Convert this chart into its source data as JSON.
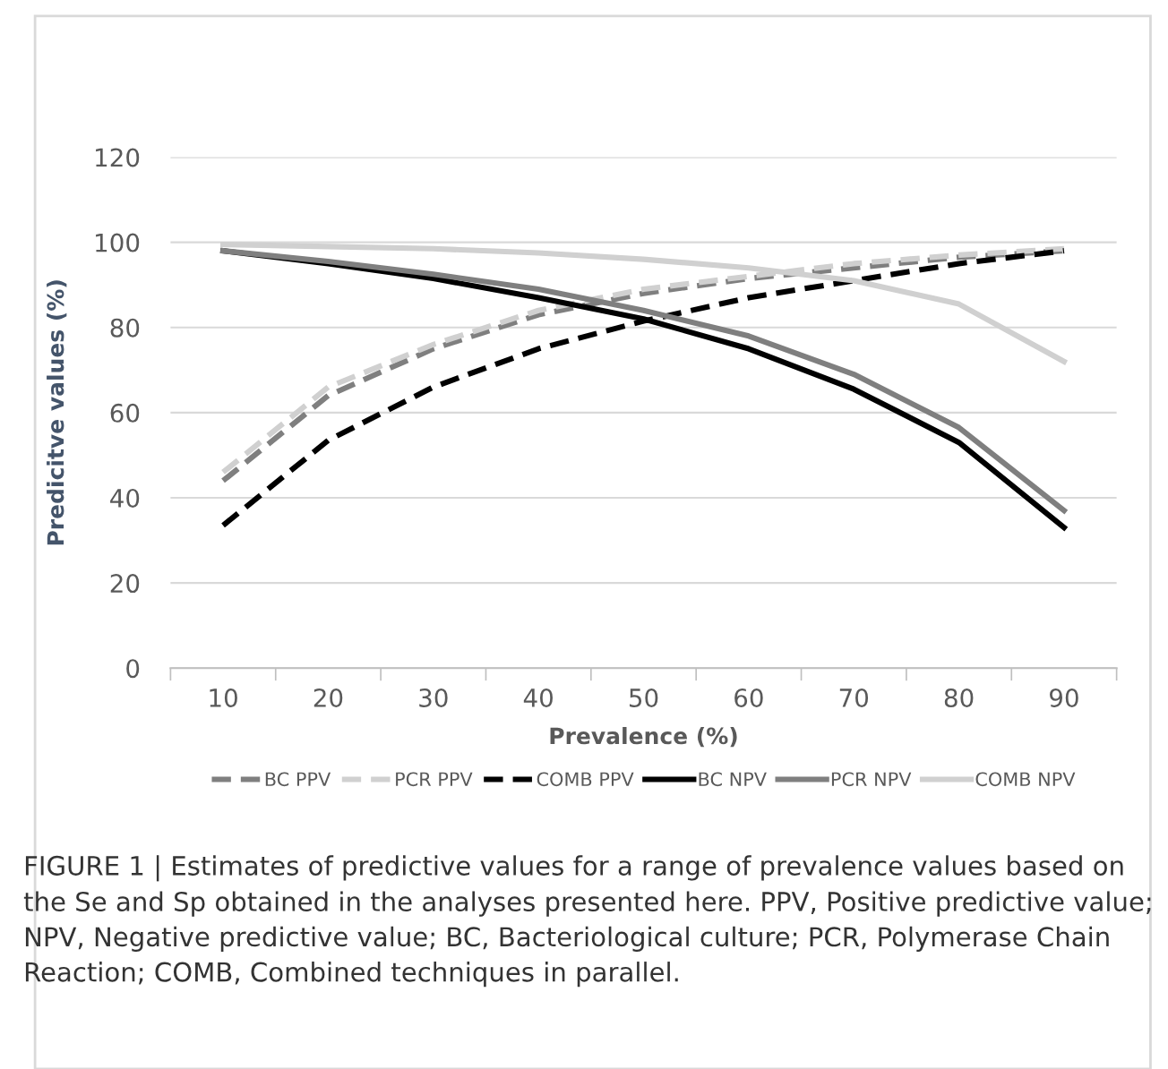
{
  "chart_data": {
    "type": "line",
    "xlabel": "Prevalence (%)",
    "ylabel": "Predicitve values (%)",
    "categories": [
      "10",
      "20",
      "30",
      "40",
      "50",
      "60",
      "70",
      "80",
      "90"
    ],
    "series": [
      {
        "name": "BC PPV",
        "color": "#7f7f7f",
        "line_style": "dashed",
        "values": [
          44,
          64,
          75,
          83,
          88,
          91.5,
          94,
          96.5,
          98
        ]
      },
      {
        "name": "PCR PPV",
        "color": "#d0d0d0",
        "line_style": "dashed",
        "values": [
          46,
          66,
          76,
          84,
          89,
          92,
          95,
          97,
          98.5
        ]
      },
      {
        "name": "COMB PPV",
        "color": "#000000",
        "line_style": "dashed",
        "values": [
          33.5,
          53.5,
          66,
          75,
          81.5,
          87,
          91,
          95,
          98
        ]
      },
      {
        "name": "BC NPV",
        "color": "#000000",
        "line_style": "solid",
        "values": [
          98,
          95,
          91.5,
          87,
          82,
          75,
          65.5,
          53,
          33
        ]
      },
      {
        "name": "PCR NPV",
        "color": "#7f7f7f",
        "line_style": "solid",
        "values": [
          98,
          95.5,
          92.5,
          89,
          84,
          78,
          69,
          56.5,
          37
        ]
      },
      {
        "name": "COMB NPV",
        "color": "#d0d0d0",
        "line_style": "solid",
        "values": [
          99.5,
          99,
          98.5,
          97.5,
          96,
          94,
          91,
          85.5,
          72
        ]
      }
    ],
    "ylim": [
      0,
      120
    ],
    "yticks": [
      0,
      20,
      40,
      60,
      80,
      100,
      120
    ],
    "grid": "y",
    "legend": "bottom",
    "marker": "none",
    "annotations": [
      "FIGURE 1 | Estimates of predictive values for a range of prevalence values based on the Se and Sp obtained in the analyses presented here. PPV, Positive predictive value; NPV, Negative predictive value; BC, Bacteriological culture; PCR, Polymerase Chain Reaction; COMB, Combined techniques in parallel."
    ]
  }
}
